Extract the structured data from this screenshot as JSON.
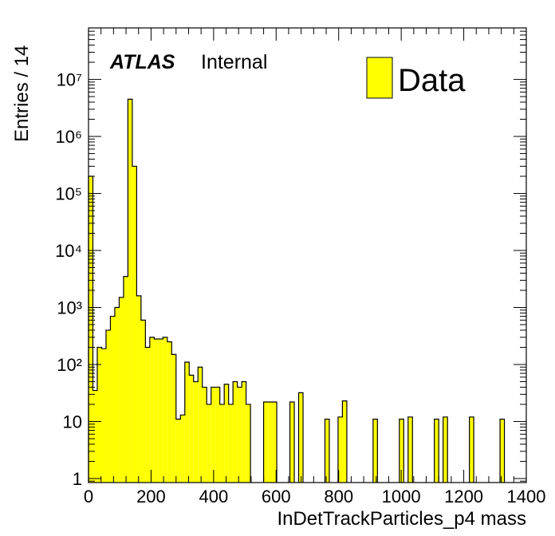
{
  "chart_data": {
    "type": "bar",
    "title": "",
    "xlabel": "InDetTrackParticles_p4 mass",
    "ylabel": "Entries / 14",
    "xlim": [
      0,
      1400
    ],
    "ylim": [
      0.85,
      80000000
    ],
    "yscale": "log",
    "bin_width": 14,
    "fill_color": "#ffff00",
    "line_color": "#000000",
    "legend_position": "top-right",
    "x_ticks": [
      0,
      200,
      400,
      600,
      800,
      1000,
      1200,
      1400
    ],
    "x_tick_labels": [
      "0",
      "200",
      "400",
      "600",
      "800",
      "1000",
      "1200",
      "1400"
    ],
    "y_ticks": [
      1,
      10,
      100,
      1000,
      10000,
      100000,
      1000000,
      10000000
    ],
    "y_tick_labels": [
      "1",
      "10",
      "10²",
      "10³",
      "10⁴",
      "10⁵",
      "10⁶",
      "10⁷"
    ],
    "series": [
      {
        "name": "Data",
        "values": [
          200000,
          35,
          200,
          190,
          400,
          700,
          1000,
          1500,
          3500,
          4500000,
          300000,
          1600,
          600,
          200,
          300,
          280,
          280,
          300,
          250,
          150,
          11,
          13,
          110,
          65,
          50,
          90,
          40,
          20,
          40,
          40,
          20,
          45,
          20,
          50,
          40,
          50,
          20,
          0,
          0,
          0,
          22,
          22,
          22,
          0,
          0,
          0,
          22,
          0,
          0,
          0,
          0,
          0,
          0,
          0,
          0,
          0,
          0,
          0,
          0,
          0,
          0,
          0,
          0,
          0,
          0,
          0,
          0,
          0,
          0,
          0,
          0,
          0,
          0,
          0,
          0,
          0,
          0,
          0,
          0,
          0,
          0,
          0,
          0,
          0,
          0,
          0,
          0,
          0,
          0,
          0,
          0,
          0,
          0,
          0,
          0,
          0,
          0,
          0,
          0,
          0
        ]
      }
    ],
    "extra_bins": [
      {
        "x": 672,
        "value": 32
      },
      {
        "x": 756,
        "value": 11
      },
      {
        "x": 798,
        "value": 12
      },
      {
        "x": 812,
        "value": 23
      },
      {
        "x": 910,
        "value": 11
      },
      {
        "x": 994,
        "value": 11
      },
      {
        "x": 1022,
        "value": 12
      },
      {
        "x": 1106,
        "value": 11
      },
      {
        "x": 1134,
        "value": 12
      },
      {
        "x": 1218,
        "value": 12
      },
      {
        "x": 1316,
        "value": 11
      }
    ]
  },
  "labels": {
    "atlas": "ATLAS",
    "internal": "Internal",
    "legend_entry": "Data"
  }
}
